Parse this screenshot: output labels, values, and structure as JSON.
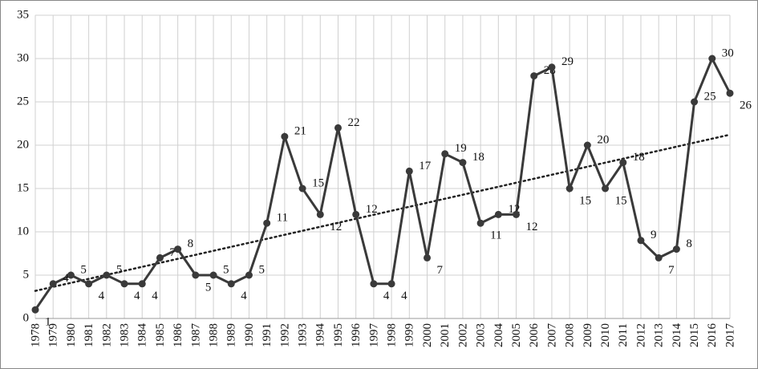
{
  "chart_data": {
    "type": "line",
    "categories": [
      "1978",
      "1979",
      "1980",
      "1981",
      "1982",
      "1983",
      "1984",
      "1985",
      "1986",
      "1987",
      "1988",
      "1989",
      "1990",
      "1991",
      "1992",
      "1993",
      "1994",
      "1995",
      "1996",
      "1997",
      "1998",
      "1999",
      "2000",
      "2001",
      "2002",
      "2003",
      "2004",
      "2005",
      "2006",
      "2007",
      "2008",
      "2009",
      "2010",
      "2011",
      "2012",
      "2013",
      "2014",
      "2015",
      "2016",
      "2017"
    ],
    "series": [
      {
        "color": "#3a3a3a",
        "values": [
          1,
          4,
          5,
          4,
          5,
          4,
          4,
          7,
          8,
          5,
          5,
          4,
          5,
          11,
          21,
          15,
          12,
          22,
          12,
          4,
          4,
          17,
          7,
          19,
          18,
          11,
          12,
          12,
          28,
          29,
          15,
          20,
          15,
          18,
          9,
          7,
          8,
          25,
          30,
          26
        ]
      }
    ],
    "ylim": [
      0,
      35
    ],
    "yticks": [
      0,
      5,
      10,
      15,
      20,
      25,
      30,
      35
    ],
    "grid": true,
    "trendline": true
  }
}
